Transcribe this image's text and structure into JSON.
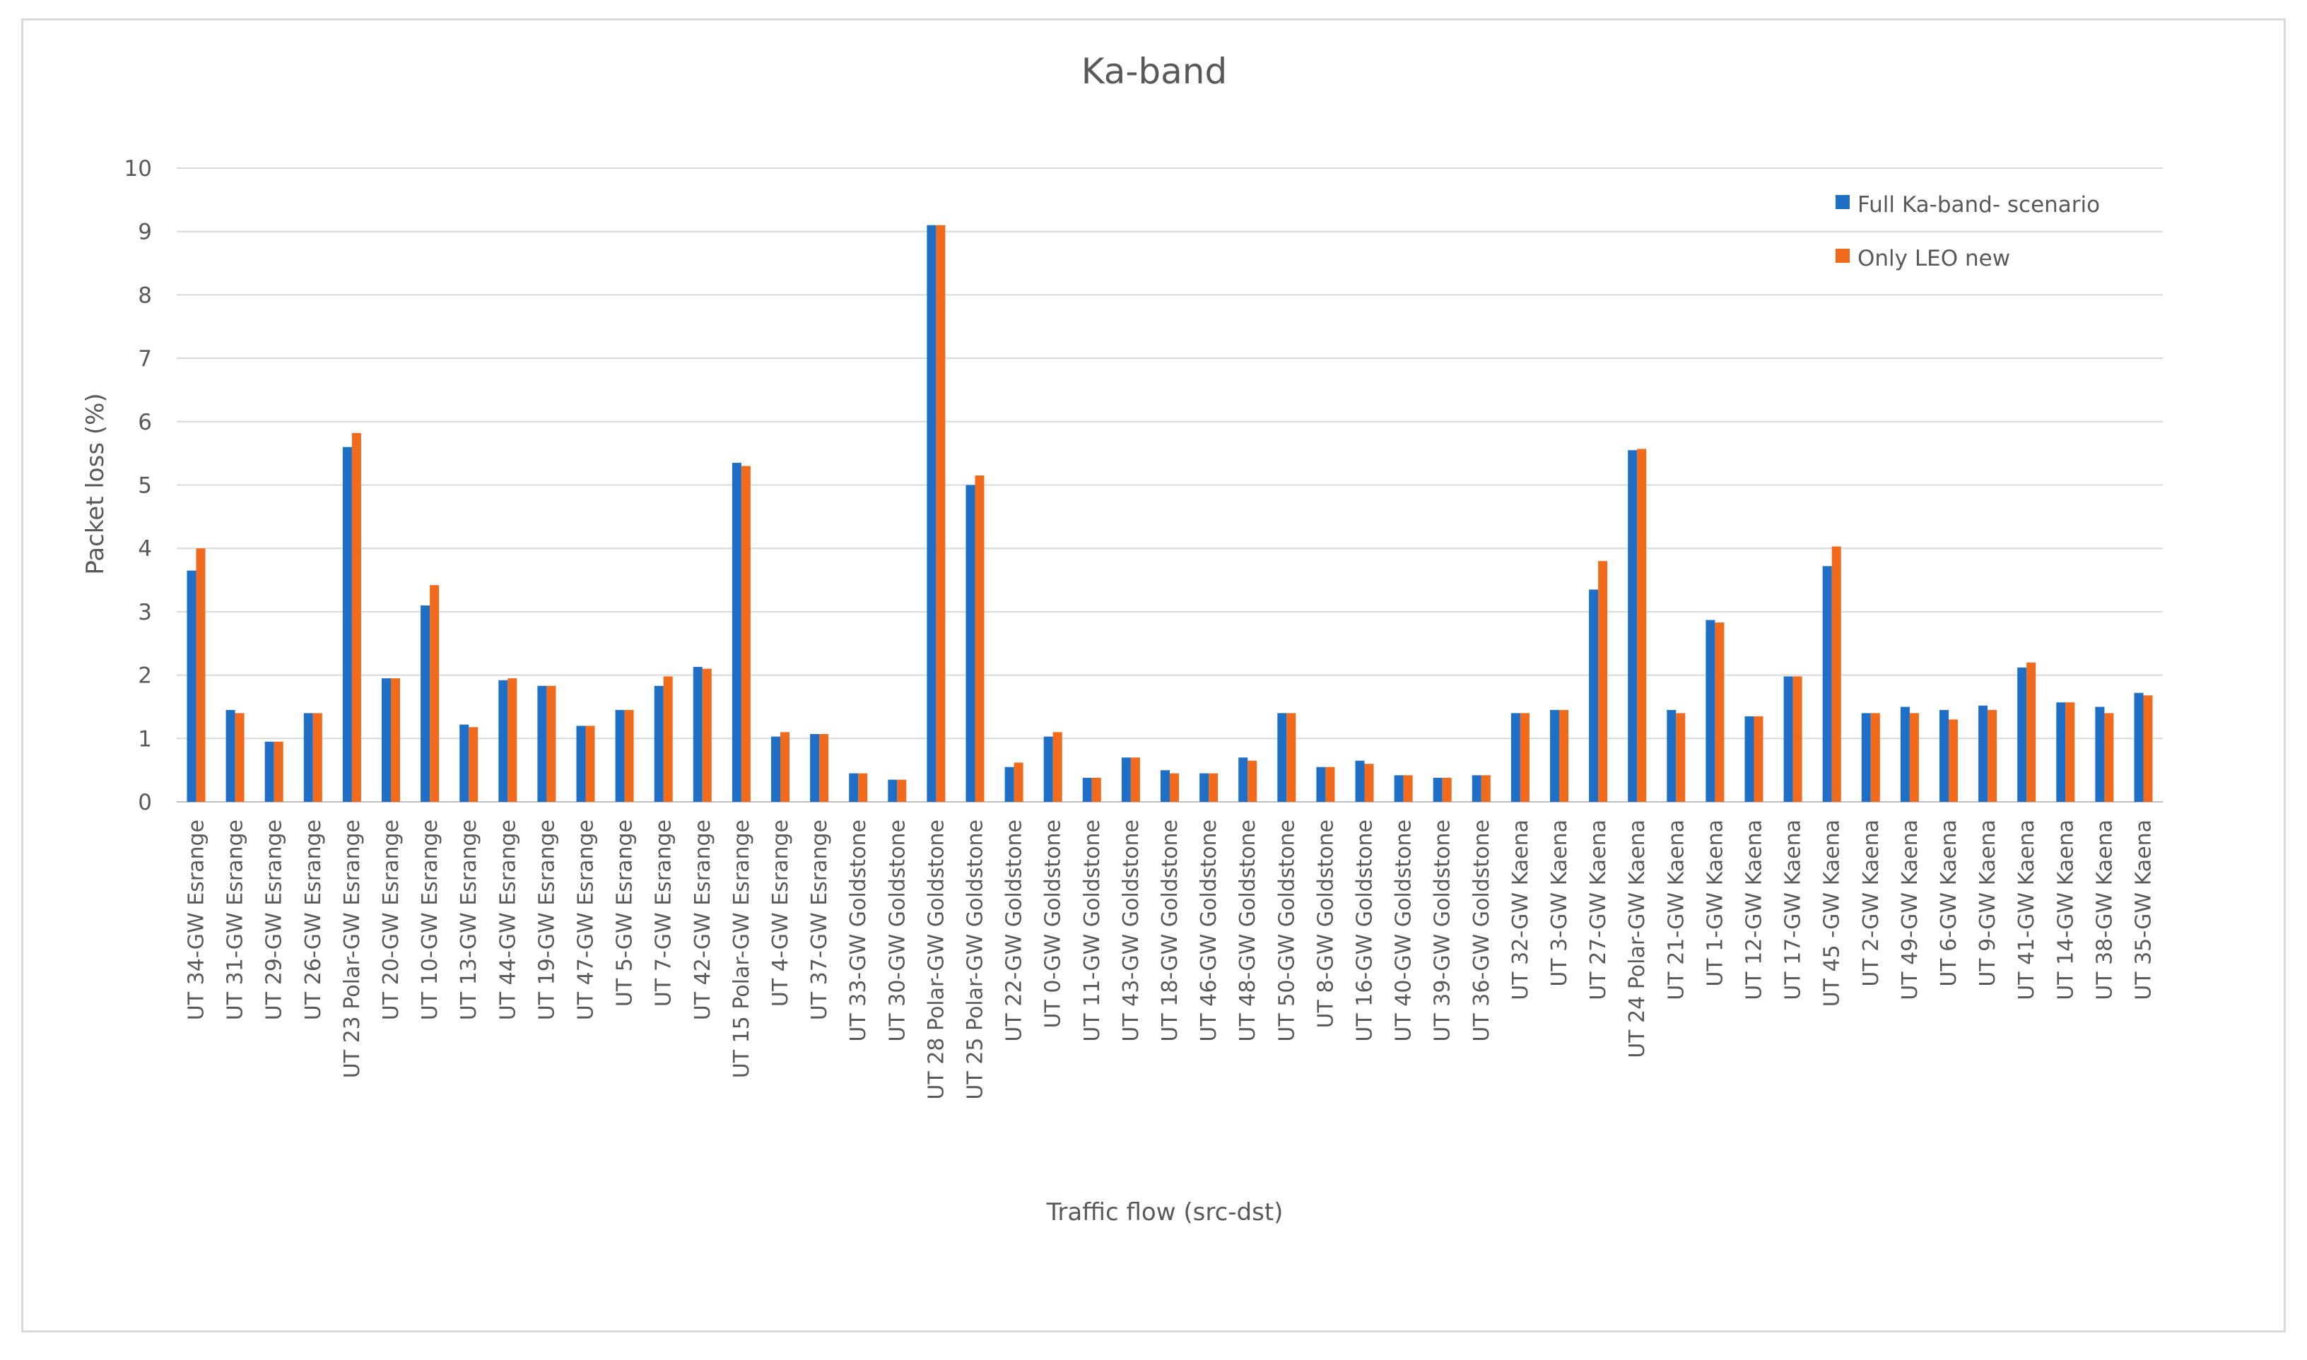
{
  "chart_data": {
    "type": "bar",
    "title": "Ka-band",
    "xlabel": "Traffic flow (src-dst)",
    "ylabel": "Packet loss (%)",
    "ylim": [
      0,
      10
    ],
    "yticks": [
      0,
      1,
      2,
      3,
      4,
      5,
      6,
      7,
      8,
      9,
      10
    ],
    "grid": true,
    "legend_position": "top-right",
    "colors": [
      "#1f6fc6",
      "#f26b1d"
    ],
    "categories": [
      "UT 34-GW Esrange",
      "UT 31-GW Esrange",
      "UT 29-GW Esrange",
      "UT 26-GW Esrange",
      "UT 23 Polar-GW Esrange",
      "UT 20-GW Esrange",
      "UT 10-GW Esrange",
      "UT 13-GW Esrange",
      "UT 44-GW Esrange",
      "UT 19-GW Esrange",
      "UT 47-GW Esrange",
      "UT 5-GW Esrange",
      "UT 7-GW Esrange",
      "UT 42-GW Esrange",
      "UT 15 Polar-GW Esrange",
      "UT 4-GW Esrange",
      "UT 37-GW Esrange",
      "UT 33-GW Goldstone",
      "UT 30-GW Goldstone",
      "UT 28 Polar-GW Goldstone",
      "UT 25 Polar-GW Goldstone",
      "UT 22-GW Goldstone",
      "UT 0-GW Goldstone",
      "UT 11-GW Goldstone",
      "UT 43-GW Goldstone",
      "UT 18-GW Goldstone",
      "UT 46-GW Goldstone",
      "UT 48-GW Goldstone",
      "UT 50-GW Goldstone",
      "UT 8-GW Goldstone",
      "UT 16-GW Goldstone",
      "UT 40-GW Goldstone",
      "UT 39-GW Goldstone",
      "UT 36-GW Goldstone",
      "UT 32-GW Kaena",
      "UT 3-GW Kaena",
      "UT 27-GW Kaena",
      "UT 24 Polar-GW Kaena",
      "UT 21-GW Kaena",
      "UT 1-GW Kaena",
      "UT 12-GW Kaena",
      "UT 17-GW Kaena",
      "UT 45 -GW Kaena",
      "UT 2-GW Kaena",
      "UT 49-GW Kaena",
      "UT 6-GW Kaena",
      "UT 9-GW Kaena",
      "UT 41-GW Kaena",
      "UT 14-GW Kaena",
      "UT 38-GW Kaena",
      "UT 35-GW Kaena"
    ],
    "series": [
      {
        "name": "Full Ka-band- scenario",
        "values": [
          3.65,
          1.45,
          0.95,
          1.4,
          5.6,
          1.95,
          3.1,
          1.22,
          1.92,
          1.83,
          1.2,
          1.45,
          1.83,
          2.13,
          5.35,
          1.03,
          1.07,
          0.45,
          0.35,
          9.1,
          5.0,
          0.55,
          1.03,
          0.38,
          0.7,
          0.5,
          0.45,
          0.7,
          1.4,
          0.55,
          0.65,
          0.42,
          0.38,
          0.42,
          1.4,
          1.45,
          3.35,
          5.55,
          1.45,
          2.87,
          1.35,
          1.98,
          3.72,
          1.4,
          1.5,
          1.45,
          1.52,
          2.12,
          1.57,
          1.5,
          1.72
        ]
      },
      {
        "name": "Only LEO new",
        "values": [
          4.0,
          1.4,
          0.95,
          1.4,
          5.82,
          1.95,
          3.42,
          1.18,
          1.95,
          1.83,
          1.2,
          1.45,
          1.98,
          2.1,
          5.3,
          1.1,
          1.07,
          0.45,
          0.35,
          9.1,
          5.15,
          0.62,
          1.1,
          0.38,
          0.7,
          0.45,
          0.45,
          0.65,
          1.4,
          0.55,
          0.6,
          0.42,
          0.38,
          0.42,
          1.4,
          1.45,
          3.8,
          5.57,
          1.4,
          2.83,
          1.35,
          1.98,
          4.03,
          1.4,
          1.4,
          1.3,
          1.45,
          2.2,
          1.57,
          1.4,
          1.68
        ]
      }
    ]
  }
}
